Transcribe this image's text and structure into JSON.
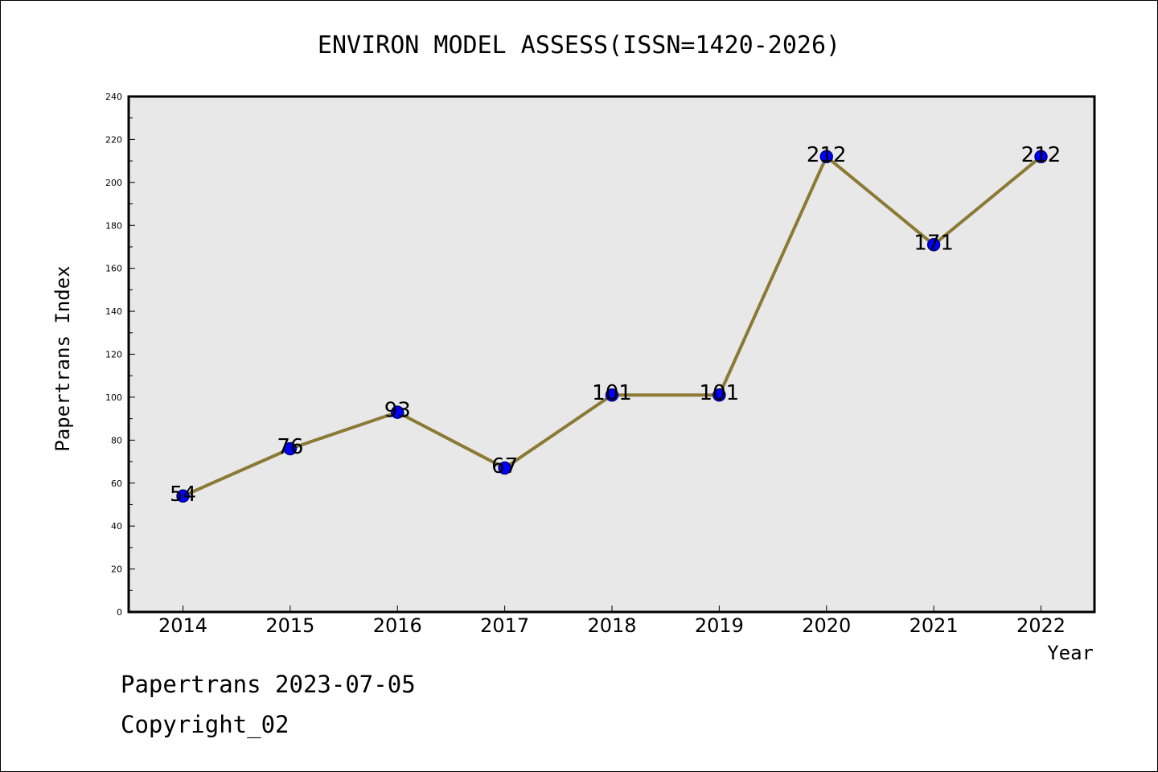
{
  "chart_data": {
    "type": "line",
    "title": "ENVIRON MODEL ASSESS(ISSN=1420-2026)",
    "xlabel": "Year",
    "ylabel": "Papertrans Index",
    "categories": [
      "2014",
      "2015",
      "2016",
      "2017",
      "2018",
      "2019",
      "2020",
      "2021",
      "2022"
    ],
    "series": [
      {
        "values": [
          54,
          76,
          93,
          67,
          101,
          101,
          212,
          171,
          212
        ]
      }
    ],
    "data_labels": [
      "54",
      "76",
      "93",
      "67",
      "101",
      "101",
      "212",
      "171",
      "212"
    ],
    "ylim": [
      0,
      240
    ],
    "yticks": [
      0,
      20,
      40,
      60,
      80,
      100,
      120,
      140,
      160,
      180,
      200,
      220,
      240
    ],
    "ytick_labels": [
      "0",
      "20",
      "40",
      "60",
      "80",
      "100",
      "120",
      "140",
      "160",
      "180",
      "200",
      "220",
      "240"
    ],
    "grid": false,
    "colors": {
      "line": "#8b7a34",
      "marker_fill": "#0000ff",
      "marker_edge": "#000080",
      "plot_background": "#e8e8e8"
    }
  },
  "footer": {
    "date_text": "Papertrans 2023-07-05",
    "copyright_text": "Copyright_02"
  }
}
